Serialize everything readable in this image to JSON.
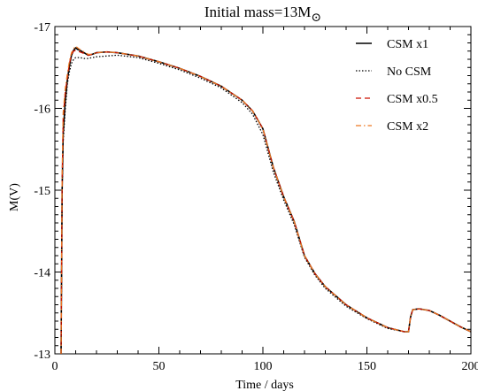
{
  "chart_data": {
    "type": "line",
    "title": "Initial mass=13M",
    "title_symbol": "⊙",
    "xlabel": "Time / days",
    "ylabel": "M(V)",
    "xlim": [
      0,
      200
    ],
    "ylim": [
      -13,
      -17
    ],
    "y_inverted": true,
    "grid": false,
    "legend_position": "top-right",
    "x_ticks": [
      0,
      50,
      100,
      150,
      200
    ],
    "y_ticks": [
      -17,
      -16,
      -15,
      -14,
      -13
    ],
    "series": [
      {
        "name": "CSM x1",
        "color": "#000000",
        "style": "solid",
        "x": [
          3,
          3.5,
          4,
          5,
          6,
          7,
          8,
          9,
          10,
          11,
          12,
          14,
          16,
          18,
          20,
          25,
          30,
          40,
          50,
          60,
          70,
          80,
          90,
          95,
          100,
          105,
          110,
          115,
          120,
          125,
          130,
          140,
          150,
          160,
          168,
          170,
          171,
          172,
          175,
          180,
          185,
          190,
          195,
          200
        ],
        "y": [
          -13,
          -15.0,
          -15.7,
          -16.1,
          -16.35,
          -16.52,
          -16.65,
          -16.71,
          -16.74,
          -16.72,
          -16.71,
          -16.68,
          -16.65,
          -16.66,
          -16.68,
          -16.69,
          -16.68,
          -16.64,
          -16.57,
          -16.49,
          -16.39,
          -16.27,
          -16.1,
          -15.97,
          -15.75,
          -15.28,
          -14.92,
          -14.62,
          -14.2,
          -13.98,
          -13.82,
          -13.6,
          -13.44,
          -13.32,
          -13.27,
          -13.27,
          -13.45,
          -13.54,
          -13.55,
          -13.53,
          -13.47,
          -13.4,
          -13.33,
          -13.27
        ]
      },
      {
        "name": "No CSM",
        "color": "#000000",
        "style": "dotted",
        "x": [
          3,
          3.5,
          4,
          5,
          6,
          7,
          8,
          9,
          10,
          12,
          14,
          16,
          18,
          20,
          25,
          30,
          40,
          50,
          60,
          70,
          80,
          90,
          95,
          100,
          105,
          110,
          115,
          120,
          125,
          130,
          140,
          150,
          160,
          168,
          170,
          171,
          172,
          175,
          180,
          185,
          190,
          195,
          200
        ],
        "y": [
          -13,
          -15.0,
          -15.6,
          -16.0,
          -16.3,
          -16.45,
          -16.55,
          -16.6,
          -16.62,
          -16.62,
          -16.61,
          -16.61,
          -16.62,
          -16.63,
          -16.64,
          -16.65,
          -16.62,
          -16.55,
          -16.47,
          -16.37,
          -16.25,
          -16.07,
          -15.93,
          -15.68,
          -15.22,
          -14.88,
          -14.58,
          -14.18,
          -13.96,
          -13.8,
          -13.58,
          -13.43,
          -13.31,
          -13.27,
          -13.27,
          -13.45,
          -13.54,
          -13.55,
          -13.53,
          -13.47,
          -13.4,
          -13.33,
          -13.27
        ]
      },
      {
        "name": "CSM x0.5",
        "color": "#cc1100",
        "style": "dashed",
        "x": [
          3,
          3.5,
          4,
          5,
          6,
          7,
          8,
          9,
          10,
          11,
          12,
          14,
          16,
          18,
          20,
          25,
          30,
          40,
          50,
          60,
          70,
          80,
          90,
          95,
          100,
          105,
          110,
          115,
          120,
          125,
          130,
          140,
          150,
          160,
          168,
          170,
          171,
          172,
          175,
          180,
          185,
          190,
          195,
          200
        ],
        "y": [
          -13,
          -15.1,
          -15.9,
          -16.2,
          -16.38,
          -16.55,
          -16.66,
          -16.7,
          -16.71,
          -16.7,
          -16.69,
          -16.67,
          -16.65,
          -16.66,
          -16.68,
          -16.69,
          -16.68,
          -16.64,
          -16.57,
          -16.49,
          -16.39,
          -16.27,
          -16.1,
          -15.97,
          -15.75,
          -15.28,
          -14.92,
          -14.62,
          -14.2,
          -13.98,
          -13.82,
          -13.6,
          -13.44,
          -13.32,
          -13.27,
          -13.27,
          -13.45,
          -13.54,
          -13.55,
          -13.53,
          -13.47,
          -13.4,
          -13.33,
          -13.27
        ]
      },
      {
        "name": "CSM x2",
        "color": "#ee7722",
        "style": "dashdot",
        "x": [
          3,
          3.5,
          4,
          5,
          6,
          7,
          8,
          9,
          10,
          11,
          12,
          14,
          16,
          18,
          20,
          25,
          30,
          40,
          50,
          60,
          70,
          80,
          90,
          95,
          100,
          105,
          110,
          115,
          120,
          125,
          130,
          140,
          150,
          160,
          168,
          170,
          171,
          172,
          175,
          180,
          185,
          190,
          195,
          200
        ],
        "y": [
          -13,
          -15.2,
          -15.95,
          -16.25,
          -16.42,
          -16.58,
          -16.68,
          -16.73,
          -16.76,
          -16.74,
          -16.72,
          -16.69,
          -16.66,
          -16.66,
          -16.68,
          -16.69,
          -16.68,
          -16.64,
          -16.57,
          -16.49,
          -16.39,
          -16.27,
          -16.1,
          -15.97,
          -15.75,
          -15.28,
          -14.92,
          -14.62,
          -14.2,
          -13.98,
          -13.82,
          -13.6,
          -13.44,
          -13.32,
          -13.27,
          -13.27,
          -13.45,
          -13.54,
          -13.55,
          -13.53,
          -13.47,
          -13.4,
          -13.33,
          -13.27
        ]
      }
    ]
  }
}
